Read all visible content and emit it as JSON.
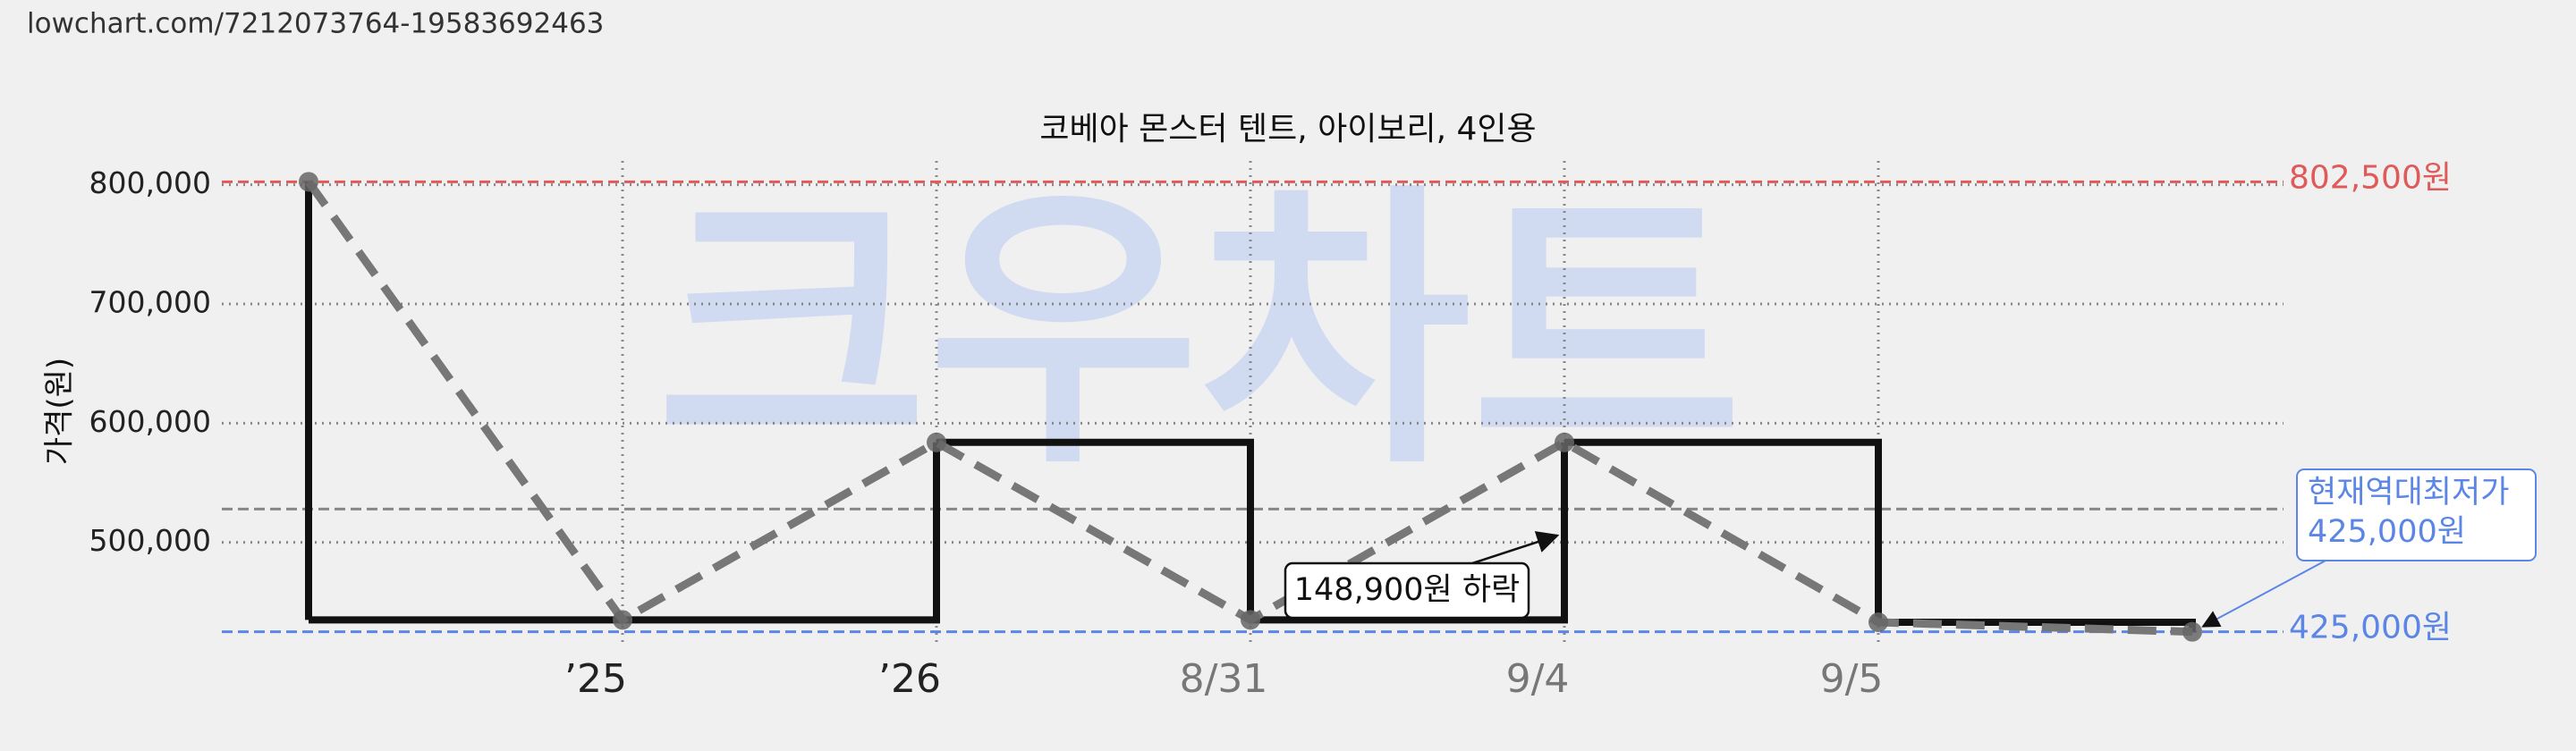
{
  "url": "lowchart.com/7212073764-19583692463",
  "chart_data": {
    "type": "line",
    "title": "코베아 몬스터 텐트, 아이보리, 4인용",
    "y_label": "가격(원)",
    "watermark": "크우차트",
    "categories": [
      null,
      "’25",
      "’26",
      "8/31",
      "9/4",
      "9/5",
      null
    ],
    "values": [
      802500,
      435000,
      583900,
      435000,
      583900,
      433000,
      425000
    ],
    "color": "#111111",
    "trend_color": "#777777",
    "ylim": [
      400000,
      835000
    ],
    "yticks": [
      {
        "value": 500000,
        "label": "500,000"
      },
      {
        "value": 600000,
        "label": "600,000"
      },
      {
        "value": 700000,
        "label": "700,000"
      },
      {
        "value": 800000,
        "label": "800,000"
      }
    ],
    "grid": true,
    "reference_lines": [
      {
        "value": 802500,
        "label": "802,500원",
        "color": "#e05a5a"
      },
      {
        "value": 425000,
        "label": "425,000원",
        "color": "#5b86e5"
      },
      {
        "value": 528000,
        "color": "#888888"
      }
    ],
    "annotations": [
      {
        "text": "148,900원 하락"
      },
      {
        "lines": [
          "현재역대최저가",
          "425,000원"
        ]
      }
    ]
  }
}
